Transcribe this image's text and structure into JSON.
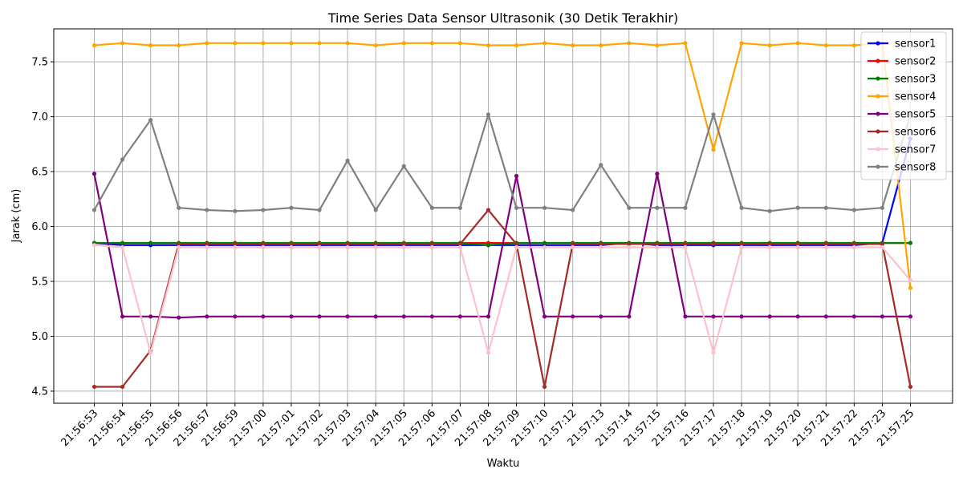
{
  "chart_data": {
    "type": "line",
    "title": "Time Series Data Sensor Ultrasonik (30 Detik Terakhir)",
    "xlabel": "Waktu",
    "ylabel": "Jarak (cm)",
    "categories": [
      "21:56:53",
      "21:56:54",
      "21:56:55",
      "21:56:56",
      "21:56:57",
      "21:56:59",
      "21:57:00",
      "21:57:01",
      "21:57:02",
      "21:57:03",
      "21:57:04",
      "21:57:05",
      "21:57:06",
      "21:57:07",
      "21:57:08",
      "21:57:09",
      "21:57:10",
      "21:57:12",
      "21:57:13",
      "21:57:14",
      "21:57:15",
      "21:57:16",
      "21:57:17",
      "21:57:18",
      "21:57:19",
      "21:57:20",
      "21:57:21",
      "21:57:22",
      "21:57:23",
      "21:57:25"
    ],
    "ylim": [
      4.39,
      7.8
    ],
    "yticks": [
      4.5,
      5.0,
      5.5,
      6.0,
      6.5,
      7.0,
      7.5
    ],
    "ytick_labels": [
      "4.5",
      "5.0",
      "5.5",
      "6.0",
      "6.5",
      "7.0",
      "7.5"
    ],
    "grid": true,
    "legend_position": "top-right",
    "series": [
      {
        "name": "sensor1",
        "color": "#0000ff",
        "values": [
          5.85,
          5.83,
          5.83,
          5.83,
          5.83,
          5.83,
          5.83,
          5.83,
          5.83,
          5.83,
          5.83,
          5.83,
          5.83,
          5.83,
          5.83,
          5.83,
          5.83,
          5.83,
          5.83,
          5.85,
          5.83,
          5.83,
          5.83,
          5.83,
          5.83,
          5.83,
          5.83,
          5.83,
          5.85,
          6.8
        ]
      },
      {
        "name": "sensor2",
        "color": "#ff0000",
        "values": [
          5.85,
          5.85,
          5.85,
          5.85,
          5.85,
          5.85,
          5.85,
          5.85,
          5.85,
          5.85,
          5.85,
          5.85,
          5.85,
          5.85,
          5.85,
          5.85,
          5.85,
          5.85,
          5.85,
          5.85,
          5.85,
          5.85,
          5.85,
          5.85,
          5.85,
          5.85,
          5.85,
          5.85,
          5.85,
          5.85
        ]
      },
      {
        "name": "sensor3",
        "color": "#008000",
        "values": [
          5.85,
          5.85,
          5.85,
          5.85,
          5.85,
          5.85,
          5.85,
          5.85,
          5.85,
          5.85,
          5.85,
          5.85,
          5.85,
          5.85,
          5.83,
          5.85,
          5.85,
          5.85,
          5.85,
          5.85,
          5.85,
          5.85,
          5.85,
          5.85,
          5.85,
          5.85,
          5.85,
          5.85,
          5.85,
          5.85
        ]
      },
      {
        "name": "sensor4",
        "color": "#ffa500",
        "values": [
          7.65,
          7.67,
          7.65,
          7.65,
          7.67,
          7.67,
          7.67,
          7.67,
          7.67,
          7.67,
          7.65,
          7.67,
          7.67,
          7.67,
          7.65,
          7.65,
          7.67,
          7.65,
          7.65,
          7.67,
          7.65,
          7.67,
          6.7,
          7.67,
          7.65,
          7.67,
          7.65,
          7.65,
          7.67,
          5.44
        ]
      },
      {
        "name": "sensor5",
        "color": "#800080",
        "values": [
          6.48,
          5.18,
          5.18,
          5.17,
          5.18,
          5.18,
          5.18,
          5.18,
          5.18,
          5.18,
          5.18,
          5.18,
          5.18,
          5.18,
          5.18,
          6.46,
          5.18,
          5.18,
          5.18,
          5.18,
          6.48,
          5.18,
          5.18,
          5.18,
          5.18,
          5.18,
          5.18,
          5.18,
          5.18,
          5.18
        ]
      },
      {
        "name": "sensor6",
        "color": "#a52a2a",
        "values": [
          4.54,
          4.54,
          4.87,
          5.84,
          5.84,
          5.84,
          5.84,
          5.84,
          5.84,
          5.84,
          5.84,
          5.84,
          5.84,
          5.84,
          6.15,
          5.84,
          4.54,
          5.84,
          5.84,
          5.84,
          5.84,
          5.84,
          5.84,
          5.84,
          5.84,
          5.84,
          5.84,
          5.84,
          5.84,
          4.54
        ]
      },
      {
        "name": "sensor7",
        "color": "#ffc0cb",
        "values": [
          5.83,
          5.81,
          4.85,
          5.81,
          5.81,
          5.81,
          5.81,
          5.81,
          5.81,
          5.81,
          5.81,
          5.81,
          5.81,
          5.81,
          4.85,
          5.81,
          5.81,
          5.81,
          5.81,
          5.81,
          5.81,
          5.81,
          4.85,
          5.81,
          5.81,
          5.81,
          5.81,
          5.81,
          5.81,
          5.51
        ]
      },
      {
        "name": "sensor8",
        "color": "#808080",
        "values": [
          6.15,
          6.61,
          6.97,
          6.17,
          6.15,
          6.14,
          6.15,
          6.17,
          6.15,
          6.6,
          6.15,
          6.55,
          6.17,
          6.17,
          7.02,
          6.17,
          6.17,
          6.15,
          6.56,
          6.17,
          6.17,
          6.17,
          7.02,
          6.17,
          6.14,
          6.17,
          6.17,
          6.15,
          6.17,
          7.02
        ]
      }
    ]
  }
}
